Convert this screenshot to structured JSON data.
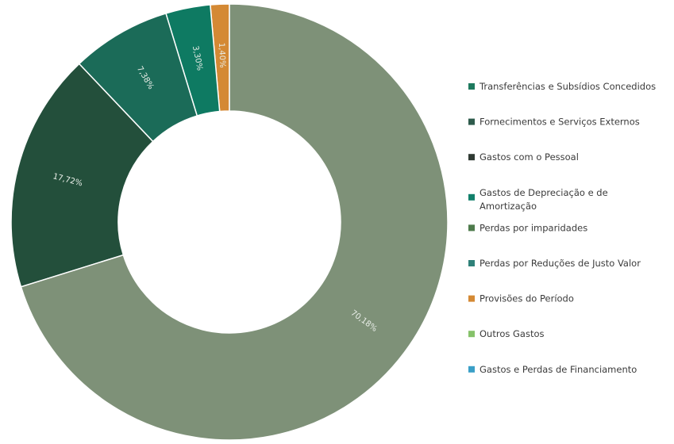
{
  "chart_data": {
    "type": "pie",
    "donut": true,
    "title": "",
    "legend_position": "right",
    "slices": [
      {
        "label": "Transferências e Subsídios Concedidos",
        "value": 0,
        "value_label": "",
        "color": "#1e7a5e"
      },
      {
        "label": "Fornecimentos e Serviços Externos",
        "value": 0,
        "value_label": "",
        "color": "#2e5b4c"
      },
      {
        "label": "Gastos com o Pessoal",
        "value": 70.18,
        "value_label": "70,18%",
        "color": "#7e9178"
      },
      {
        "label": "Gastos de Depreciação e de Amortização",
        "value": 0,
        "value_label": "",
        "color": "#12806b"
      },
      {
        "label": "Perdas por imparidades",
        "value": 17.72,
        "value_label": "17,72%",
        "color": "#234f3b"
      },
      {
        "label": "Perdas por Reduções de Justo Valor",
        "value": 7.38,
        "value_label": "7,38%",
        "color": "#1b6b58"
      },
      {
        "label": "Provisões do Período",
        "value": 0,
        "value_label": "",
        "color": "#d48934"
      },
      {
        "label": "Outros Gastos",
        "value": 3.3,
        "value_label": "3,30%",
        "color": "#0e7a62"
      },
      {
        "label": "Gastos e Perdas de Financiamento",
        "value": 1.4,
        "value_label": "1,40%",
        "color": "#d48934"
      }
    ],
    "legend": [
      {
        "label": "Transferências e Subsídios Concedidos",
        "lines": [
          "Transferências e Subsídios Concedidos"
        ],
        "color": "#1e7a5e"
      },
      {
        "label": "Fornecimentos e Serviços Externos",
        "lines": [
          "Fornecimentos e Serviços Externos"
        ],
        "color": "#2e5b4c"
      },
      {
        "label": "Gastos com o Pessoal",
        "lines": [
          "Gastos com o Pessoal"
        ],
        "color": "#2f3a33"
      },
      {
        "label": "Gastos de Depreciação e de Amortização",
        "lines": [
          "Gastos de Depreciação e de",
          "Amortização"
        ],
        "color": "#12806b"
      },
      {
        "label": "Perdas por imparidades",
        "lines": [
          "Perdas por imparidades"
        ],
        "color": "#4e7b4c"
      },
      {
        "label": "Perdas por Reduções de Justo Valor",
        "lines": [
          "Perdas por Reduções de Justo Valor"
        ],
        "color": "#2f8179"
      },
      {
        "label": "Provisões do Período",
        "lines": [
          "Provisões do Período"
        ],
        "color": "#d48934"
      },
      {
        "label": "Outros Gastos",
        "lines": [
          "Outros Gastos"
        ],
        "color": "#86c26a"
      },
      {
        "label": "Gastos e Perdas de Financiamento",
        "lines": [
          "Gastos e Perdas de Financiamento"
        ],
        "color": "#3a9fc7"
      }
    ]
  }
}
